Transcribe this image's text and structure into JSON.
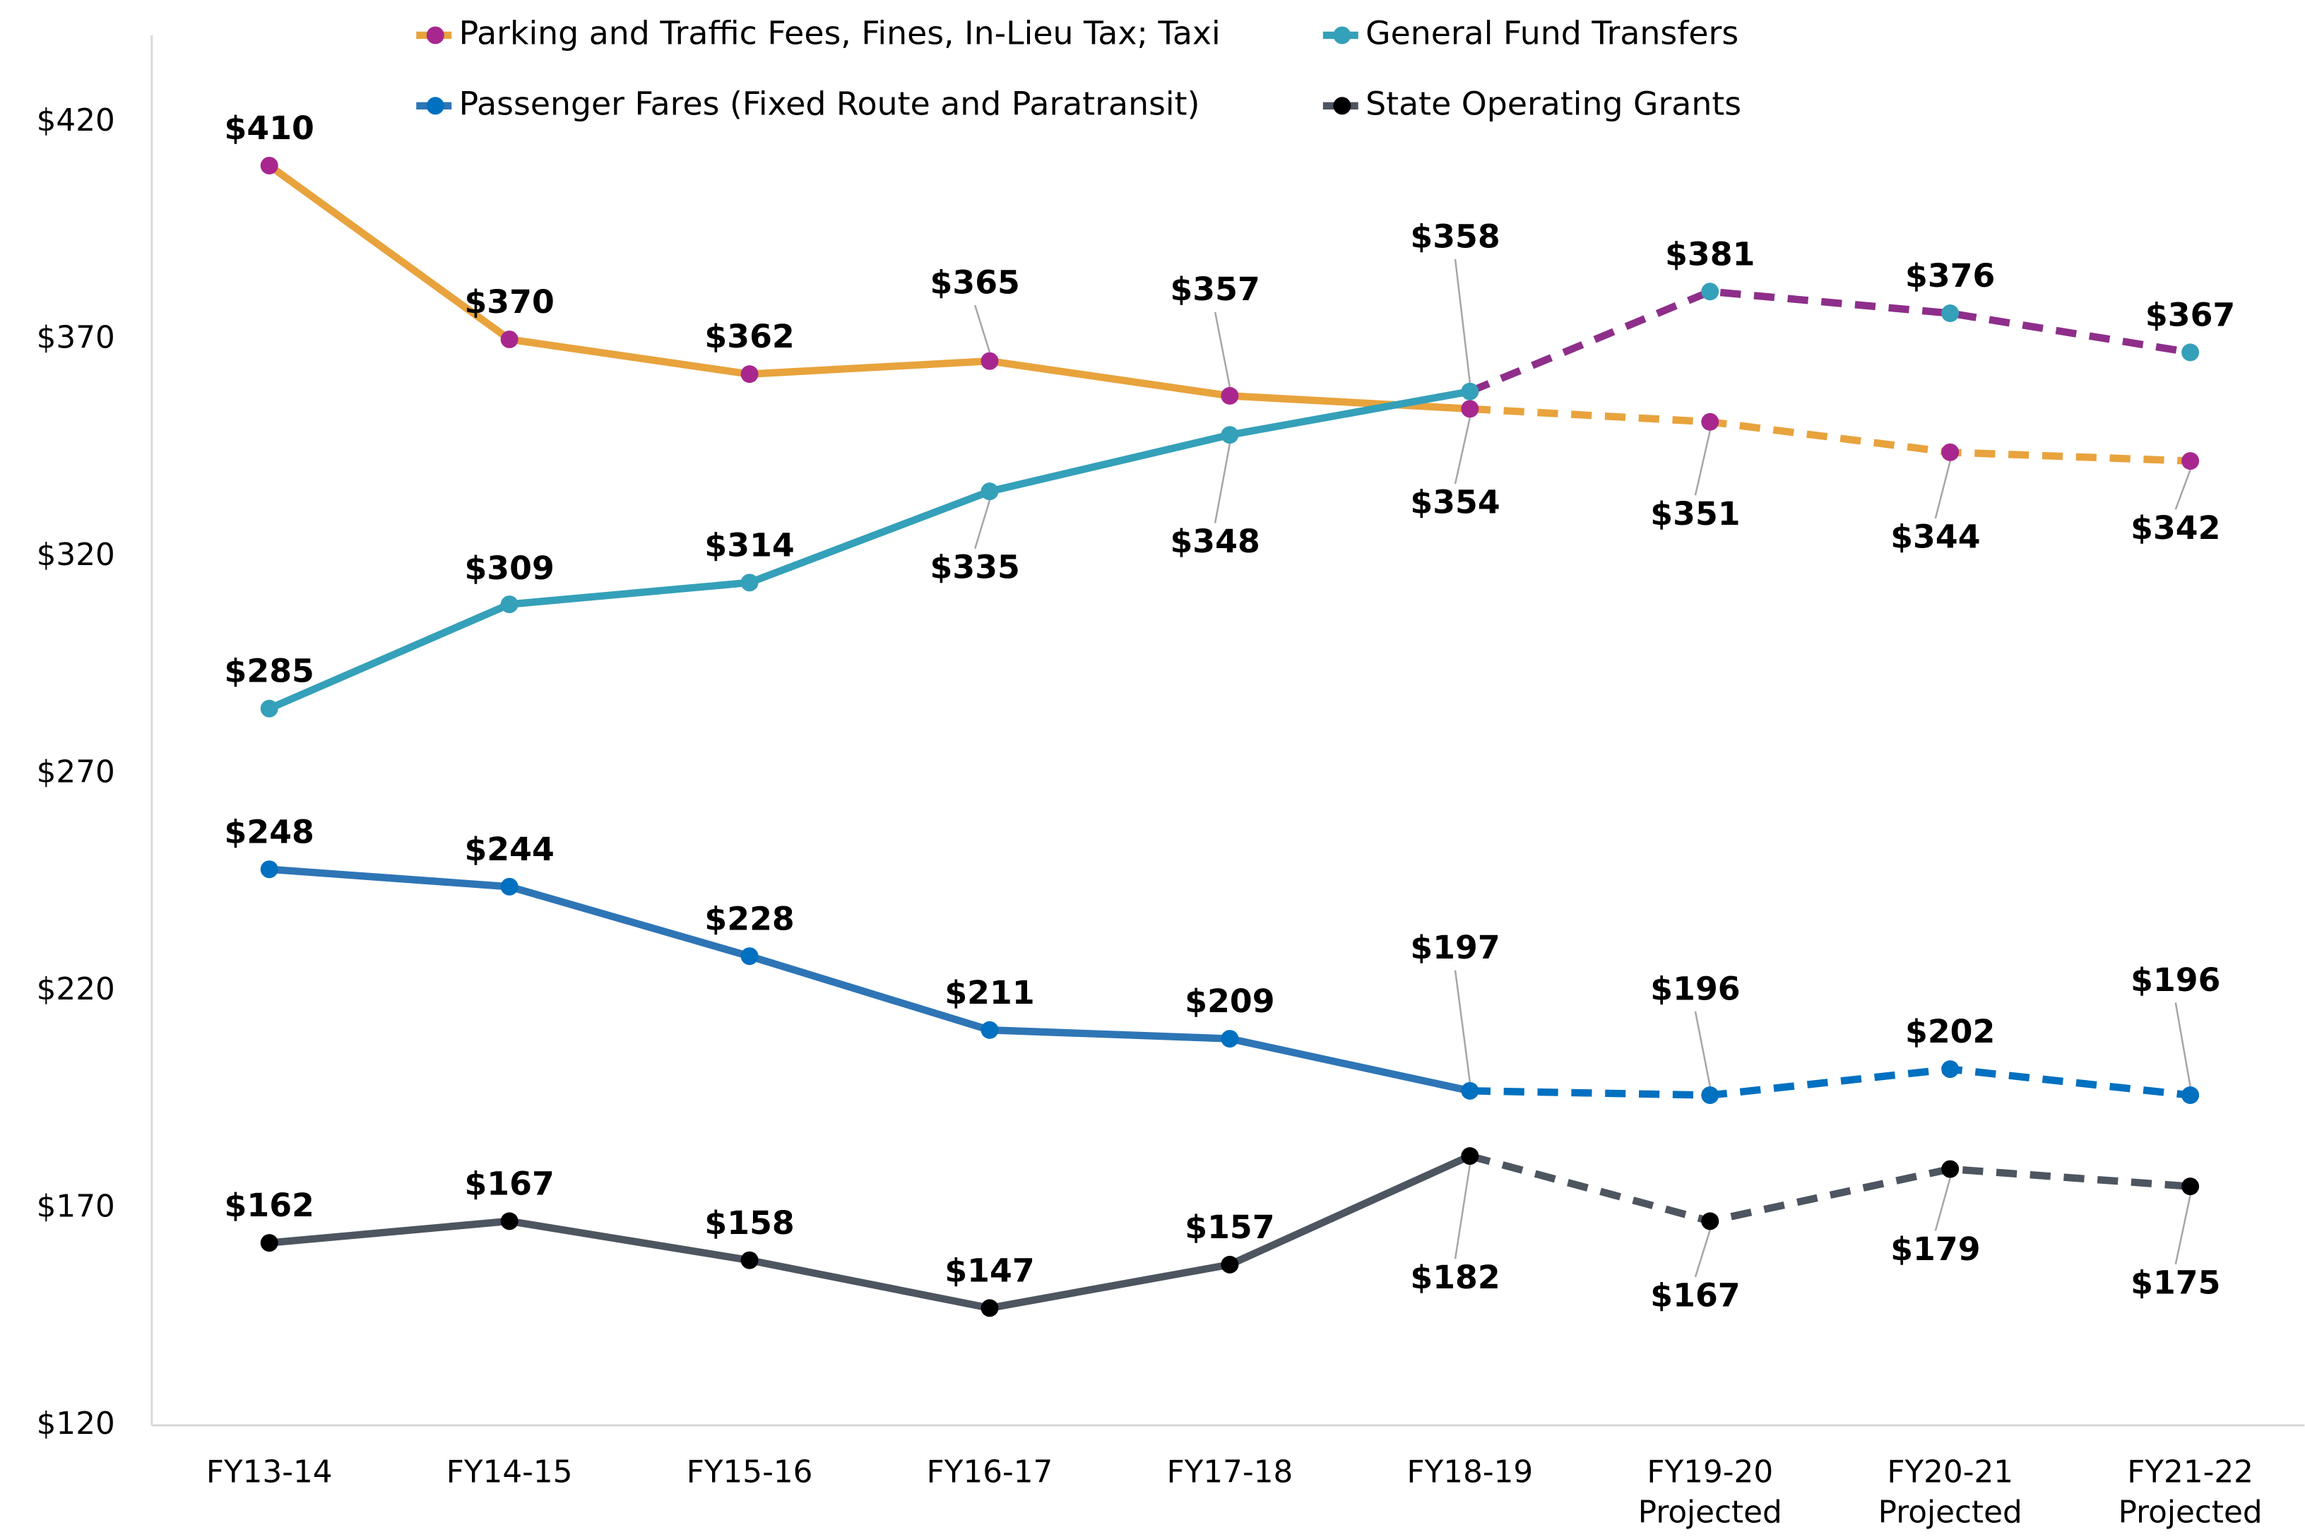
{
  "chart_data": {
    "type": "line",
    "categories": [
      "FY13-14",
      "FY14-15",
      "FY15-16",
      "FY16-17",
      "FY17-18",
      "FY18-19",
      "FY19-20\nProjected",
      "FY20-21\nProjected",
      "FY21-22\nProjected"
    ],
    "series": [
      {
        "name": "Parking and Traffic Fees, Fines, In-Lieu Tax; Taxi",
        "color": "#e8a33d",
        "marker_color": "#a8278f",
        "projected_color": "#e8a33d",
        "values": [
          410,
          370,
          362,
          365,
          357,
          354,
          351,
          344,
          342
        ],
        "value_labels": [
          "$410",
          "$370",
          "$362",
          "$365",
          "$357",
          "$354",
          "$351",
          "$344",
          "$342"
        ]
      },
      {
        "name": "General Fund Transfers",
        "color": "#35a0b9",
        "marker_color": "#35a0b9",
        "projected_color": "#8e2e8a",
        "values": [
          285,
          309,
          314,
          335,
          348,
          358,
          381,
          376,
          367
        ],
        "value_labels": [
          "$285",
          "$309",
          "$314",
          "$335",
          "$348",
          "$358",
          "$381",
          "$376",
          "$367"
        ]
      },
      {
        "name": "Passenger Fares (Fixed Route and Paratransit)",
        "color": "#2e75b6",
        "marker_color": "#0070c0",
        "projected_color": "#0070c0",
        "values": [
          248,
          244,
          228,
          211,
          209,
          197,
          196,
          202,
          196
        ],
        "value_labels": [
          "$248",
          "$244",
          "$228",
          "$211",
          "$209",
          "$197",
          "$196",
          "$202",
          "$196"
        ]
      },
      {
        "name": "State Operating Grants",
        "color": "#4d5560",
        "marker_color": "#000000",
        "projected_color": "#4d5560",
        "values": [
          162,
          167,
          158,
          147,
          157,
          182,
          167,
          179,
          175
        ],
        "value_labels": [
          "$162",
          "$167",
          "$158",
          "$147",
          "$157",
          "$182",
          "$167",
          "$179",
          "$175"
        ]
      }
    ],
    "ylim": [
      120,
      440
    ],
    "yticks": [
      {
        "value": 120,
        "label": "$120"
      },
      {
        "value": 170,
        "label": "$170"
      },
      {
        "value": 220,
        "label": "$220"
      },
      {
        "value": 270,
        "label": "$270"
      },
      {
        "value": 320,
        "label": "$320"
      },
      {
        "value": 370,
        "label": "$370"
      },
      {
        "value": 420,
        "label": "$420"
      }
    ],
    "grid": false,
    "legend": "top"
  }
}
